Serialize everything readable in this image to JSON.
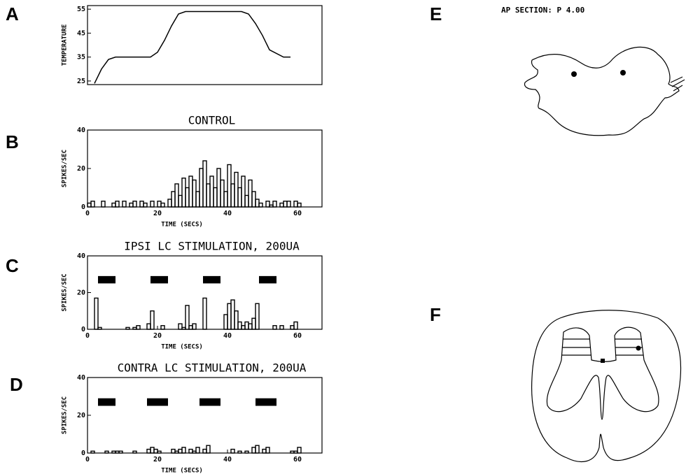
{
  "panel_labels": [
    "A",
    "B",
    "C",
    "D",
    "E",
    "F"
  ],
  "section_label": "AP SECTION: P 4.00",
  "chart_data": [
    {
      "type": "line",
      "ylabel": "TEMPERATURE",
      "x": [
        2,
        4,
        6,
        8,
        18,
        20,
        22,
        24,
        26,
        28,
        44,
        46,
        48,
        50,
        52,
        56,
        58
      ],
      "values": [
        24,
        30,
        34,
        35,
        35,
        37,
        42,
        48,
        53,
        54,
        54,
        53,
        49,
        44,
        38,
        35,
        35
      ],
      "color": "#000000",
      "xlim": [
        0,
        67
      ],
      "ylim": [
        23.5,
        56.5
      ],
      "yticks": [
        25,
        35,
        45,
        55
      ]
    },
    {
      "type": "histogram",
      "title": "CONTROL",
      "xlabel": "TIME (SECS)",
      "ylabel": "SPIKES/SEC",
      "bins": [
        0,
        1,
        2,
        3,
        4,
        5,
        6,
        7,
        8,
        9,
        10,
        11,
        12,
        13,
        14,
        15,
        16,
        17,
        18,
        19,
        20,
        21,
        22,
        23,
        24,
        25,
        26,
        27,
        28,
        29,
        30,
        31,
        32,
        33,
        34,
        35,
        36,
        37,
        38,
        39,
        40,
        41,
        42,
        43,
        44,
        45,
        46,
        47,
        48,
        49,
        50,
        51,
        52,
        53,
        54,
        55,
        56,
        57,
        58,
        59,
        60,
        61
      ],
      "values": [
        2,
        3,
        0,
        0,
        3,
        0,
        0,
        2,
        3,
        0,
        3,
        0,
        2,
        3,
        0,
        3,
        2,
        0,
        3,
        0,
        3,
        2,
        0,
        4,
        8,
        12,
        6,
        15,
        10,
        16,
        14,
        8,
        20,
        24,
        12,
        16,
        10,
        20,
        14,
        8,
        22,
        12,
        18,
        10,
        16,
        6,
        14,
        8,
        4,
        2,
        0,
        3,
        1,
        3,
        0,
        2,
        3,
        3,
        0,
        3,
        2
      ],
      "color": "#000000",
      "xlim": [
        0,
        67
      ],
      "ylim": [
        0,
        40
      ],
      "xticks": [
        0,
        20,
        40,
        60
      ],
      "yticks": [
        0,
        20,
        40
      ]
    },
    {
      "type": "histogram",
      "title": "IPSI LC STIMULATION, 200UA",
      "xlabel": "TIME (SECS)",
      "ylabel": "SPIKES/SEC",
      "bins": [
        0,
        1,
        2,
        3,
        4,
        5,
        6,
        7,
        8,
        9,
        10,
        11,
        12,
        13,
        14,
        15,
        16,
        17,
        18,
        19,
        20,
        21,
        22,
        23,
        24,
        25,
        26,
        27,
        28,
        29,
        30,
        31,
        32,
        33,
        34,
        35,
        36,
        37,
        38,
        39,
        40,
        41,
        42,
        43,
        44,
        45,
        46,
        47,
        48,
        49,
        50,
        51,
        52,
        53,
        54,
        55,
        56,
        57,
        58,
        59,
        60,
        61
      ],
      "values": [
        0,
        0,
        17,
        1,
        0,
        0,
        0,
        0,
        0,
        0,
        0,
        1,
        0,
        1,
        2,
        0,
        0,
        3,
        10,
        0,
        0,
        2,
        0,
        0,
        0,
        0,
        3,
        1,
        13,
        2,
        3,
        0,
        0,
        17,
        0,
        0,
        0,
        0,
        0,
        8,
        14,
        16,
        10,
        4,
        2,
        4,
        3,
        6,
        14,
        0,
        0,
        0,
        0,
        2,
        0,
        2,
        0,
        0,
        2,
        4,
        0
      ],
      "stimulus_bars": [
        {
          "start": 3,
          "end": 8,
          "low": 25,
          "high": 29
        },
        {
          "start": 18,
          "end": 23,
          "low": 25,
          "high": 29
        },
        {
          "start": 33,
          "end": 38,
          "low": 25,
          "high": 29
        },
        {
          "start": 49,
          "end": 54,
          "low": 25,
          "high": 29
        }
      ],
      "color": "#000000",
      "xlim": [
        0,
        67
      ],
      "ylim": [
        0,
        40
      ],
      "xticks": [
        0,
        20,
        40,
        60
      ],
      "yticks": [
        0,
        20,
        40
      ]
    },
    {
      "type": "histogram",
      "title": "CONTRA LC STIMULATION, 200UA",
      "xlabel": "TIME (SECS)",
      "ylabel": "SPIKES/SEC",
      "bins": [
        0,
        1,
        2,
        3,
        4,
        5,
        6,
        7,
        8,
        9,
        10,
        11,
        12,
        13,
        14,
        15,
        16,
        17,
        18,
        19,
        20,
        21,
        22,
        23,
        24,
        25,
        26,
        27,
        28,
        29,
        30,
        31,
        32,
        33,
        34,
        35,
        36,
        37,
        38,
        39,
        40,
        41,
        42,
        43,
        44,
        45,
        46,
        47,
        48,
        49,
        50,
        51,
        52,
        53,
        54,
        55,
        56,
        57,
        58,
        59,
        60,
        61
      ],
      "values": [
        0,
        1,
        0,
        0,
        0,
        1,
        0,
        1,
        1,
        1,
        0,
        0,
        0,
        1,
        0,
        0,
        0,
        2,
        3,
        2,
        1,
        0,
        0,
        0,
        2,
        1,
        2,
        3,
        0,
        2,
        1,
        3,
        0,
        2,
        4,
        0,
        0,
        0,
        0,
        0,
        0,
        2,
        0,
        1,
        0,
        1,
        0,
        3,
        4,
        0,
        2,
        3,
        0,
        0,
        0,
        0,
        0,
        0,
        1,
        1,
        3
      ],
      "stimulus_bars": [
        {
          "start": 3,
          "end": 8,
          "low": 25,
          "high": 29
        },
        {
          "start": 17,
          "end": 23,
          "low": 25,
          "high": 29
        },
        {
          "start": 32,
          "end": 38,
          "low": 25,
          "high": 29
        },
        {
          "start": 48,
          "end": 54,
          "low": 25,
          "high": 29
        }
      ],
      "color": "#000000",
      "xlim": [
        0,
        67
      ],
      "ylim": [
        0,
        40
      ],
      "xticks": [
        0,
        20,
        40,
        60
      ],
      "yticks": [
        0,
        20,
        40
      ]
    }
  ]
}
